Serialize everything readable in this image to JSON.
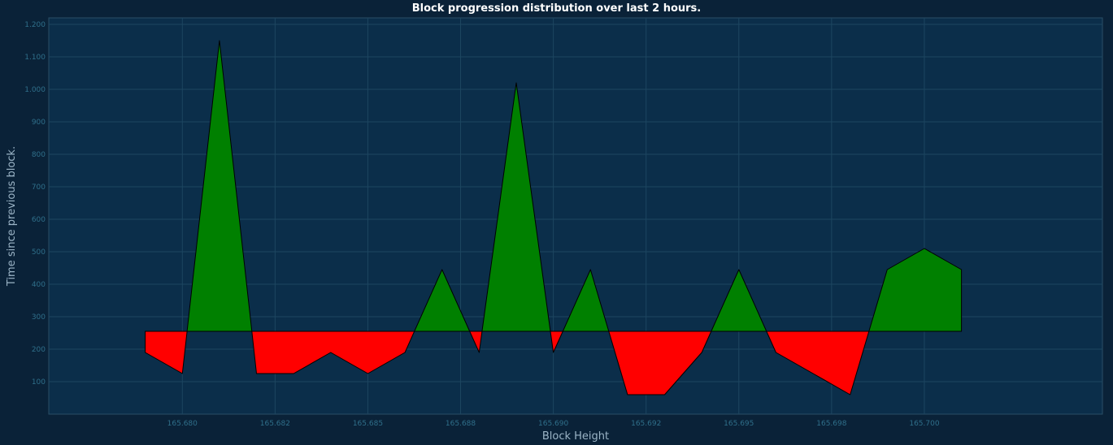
{
  "chart_data": {
    "type": "area",
    "title": "Block progression distribution over last 2 hours.",
    "xlabel": "Block Height",
    "ylabel": "Time since previous block.",
    "baseline": 255,
    "xlim": [
      165676.4,
      165704.8
    ],
    "ylim": [
      0,
      1220
    ],
    "x_ticks": [
      {
        "value": 165680,
        "label": "165.680"
      },
      {
        "value": 165682.5,
        "label": "165.682"
      },
      {
        "value": 165685,
        "label": "165.685"
      },
      {
        "value": 165687.5,
        "label": "165.688"
      },
      {
        "value": 165690,
        "label": "165.690"
      },
      {
        "value": 165692.5,
        "label": "165.692"
      },
      {
        "value": 165695,
        "label": "165.695"
      },
      {
        "value": 165697.5,
        "label": "165.698"
      },
      {
        "value": 165700,
        "label": "165.700"
      }
    ],
    "y_ticks": [
      {
        "value": 100,
        "label": "100"
      },
      {
        "value": 200,
        "label": "200"
      },
      {
        "value": 300,
        "label": "300"
      },
      {
        "value": 400,
        "label": "400"
      },
      {
        "value": 500,
        "label": "500"
      },
      {
        "value": 600,
        "label": "600"
      },
      {
        "value": 700,
        "label": "700"
      },
      {
        "value": 800,
        "label": "800"
      },
      {
        "value": 900,
        "label": "900"
      },
      {
        "value": 1000,
        "label": "1.000"
      },
      {
        "value": 1100,
        "label": "1.100"
      },
      {
        "value": 1200,
        "label": "1.200"
      }
    ],
    "series": [
      {
        "x": [
          165679,
          165680,
          165681,
          165682,
          165683,
          165684,
          165685,
          165686,
          165687,
          165688,
          165689,
          165690,
          165691,
          165692,
          165693,
          165694,
          165695,
          165696,
          165697,
          165698,
          165699,
          165700,
          165701
        ],
        "values": [
          190,
          125,
          1150,
          125,
          125,
          190,
          125,
          190,
          445,
          190,
          1020,
          190,
          445,
          60,
          60,
          190,
          445,
          190,
          125,
          60,
          445,
          510,
          445
        ]
      }
    ],
    "grid": true,
    "above_color": "#008000",
    "below_color": "#ff0000",
    "background": "#0b2e4a",
    "outline_color": "#000000"
  }
}
